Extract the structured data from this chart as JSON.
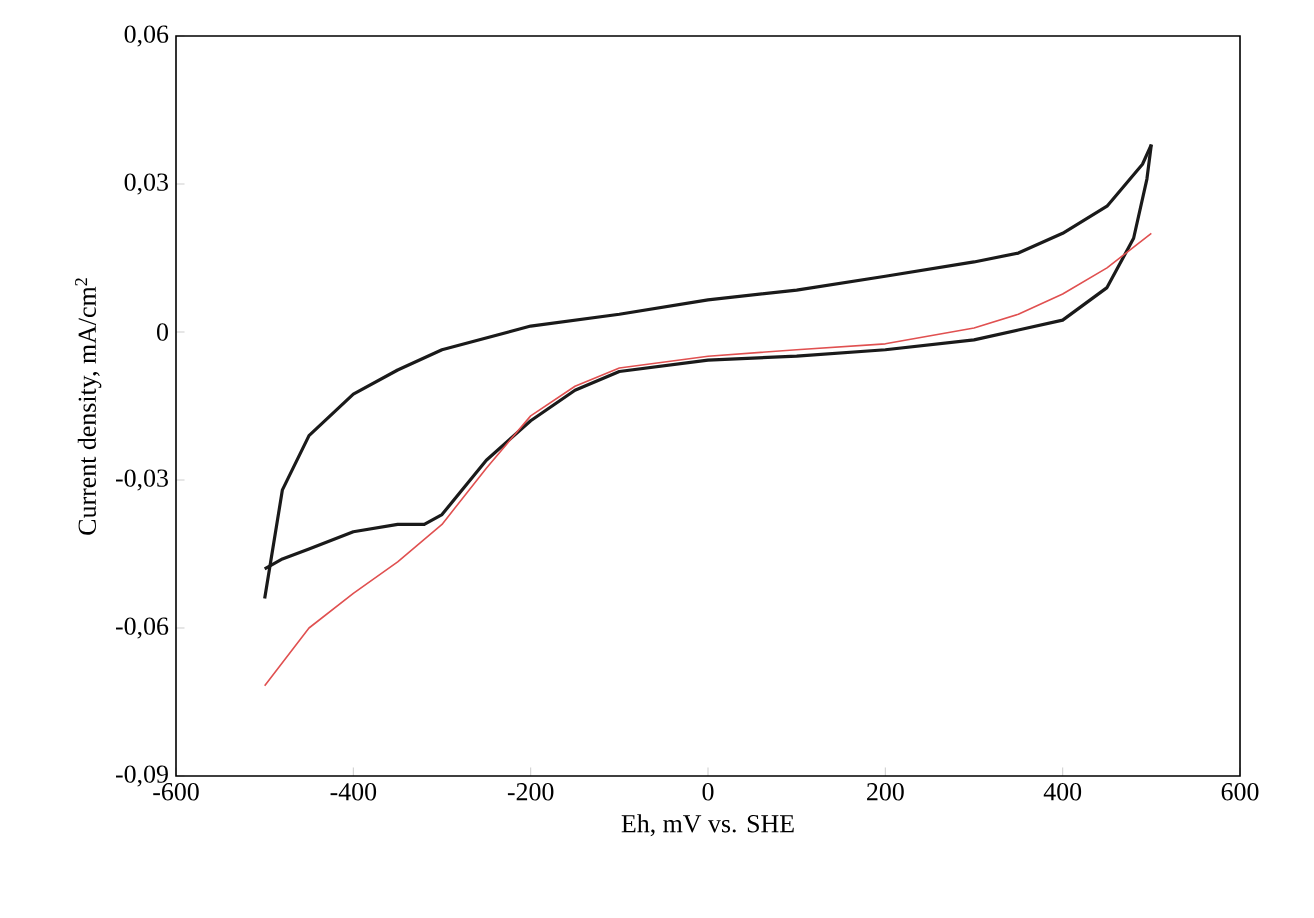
{
  "chart_data": {
    "type": "line",
    "xlabel": "Eh, mV vs. SHE",
    "ylabel": "Current density, mA/cm$^{2}$",
    "xlim": [
      -600,
      600
    ],
    "ylim": [
      -0.09,
      0.06
    ],
    "xticks": [
      -600,
      -400,
      -200,
      0,
      200,
      400,
      600
    ],
    "yticks": [
      {
        "value": -0.09,
        "label": "-0,09"
      },
      {
        "value": -0.06,
        "label": "-0,06"
      },
      {
        "value": -0.03,
        "label": "-0,03"
      },
      {
        "value": 0,
        "label": "0"
      },
      {
        "value": 0.03,
        "label": "0,03"
      },
      {
        "value": 0.06,
        "label": "0,06"
      }
    ],
    "grid": false,
    "marker": "none",
    "line_style": "solid",
    "series": [
      {
        "color": "#1a1a1a",
        "x": [
          -500,
          -480,
          -450,
          -400,
          -350,
          -300,
          -200,
          -100,
          0,
          100,
          200,
          300,
          350,
          400,
          450,
          490,
          500
        ],
        "values": [
          -0.054,
          -0.032,
          -0.021,
          -0.0126,
          -0.0077,
          -0.0036,
          0.0012,
          0.0036,
          0.0065,
          0.0085,
          0.0113,
          0.0142,
          0.016,
          0.02,
          0.0255,
          0.034,
          0.038
        ]
      },
      {
        "color": "#1a1a1a",
        "x": [
          500,
          495,
          480,
          450,
          400,
          350,
          300,
          200,
          100,
          0,
          -100,
          -150,
          -200,
          -250,
          -300,
          -320,
          -350,
          -400,
          -450,
          -480,
          -500
        ],
        "values": [
          0.038,
          0.031,
          0.019,
          0.009,
          0.0024,
          0.0004,
          -0.0016,
          -0.0036,
          -0.0049,
          -0.0057,
          -0.008,
          -0.0118,
          -0.018,
          -0.026,
          -0.037,
          -0.039,
          -0.039,
          -0.0405,
          -0.044,
          -0.046,
          -0.048
        ]
      },
      {
        "color": "#e05050",
        "x": [
          -500,
          -450,
          -400,
          -350,
          -300,
          -250,
          -200,
          -150,
          -100,
          0,
          100,
          200,
          300,
          350,
          400,
          450,
          500
        ],
        "values": [
          -0.0717,
          -0.06,
          -0.053,
          -0.0466,
          -0.039,
          -0.0276,
          -0.017,
          -0.011,
          -0.0073,
          -0.0049,
          -0.0036,
          -0.0024,
          0.0008,
          0.0036,
          0.0077,
          0.013,
          0.02
        ]
      }
    ]
  }
}
